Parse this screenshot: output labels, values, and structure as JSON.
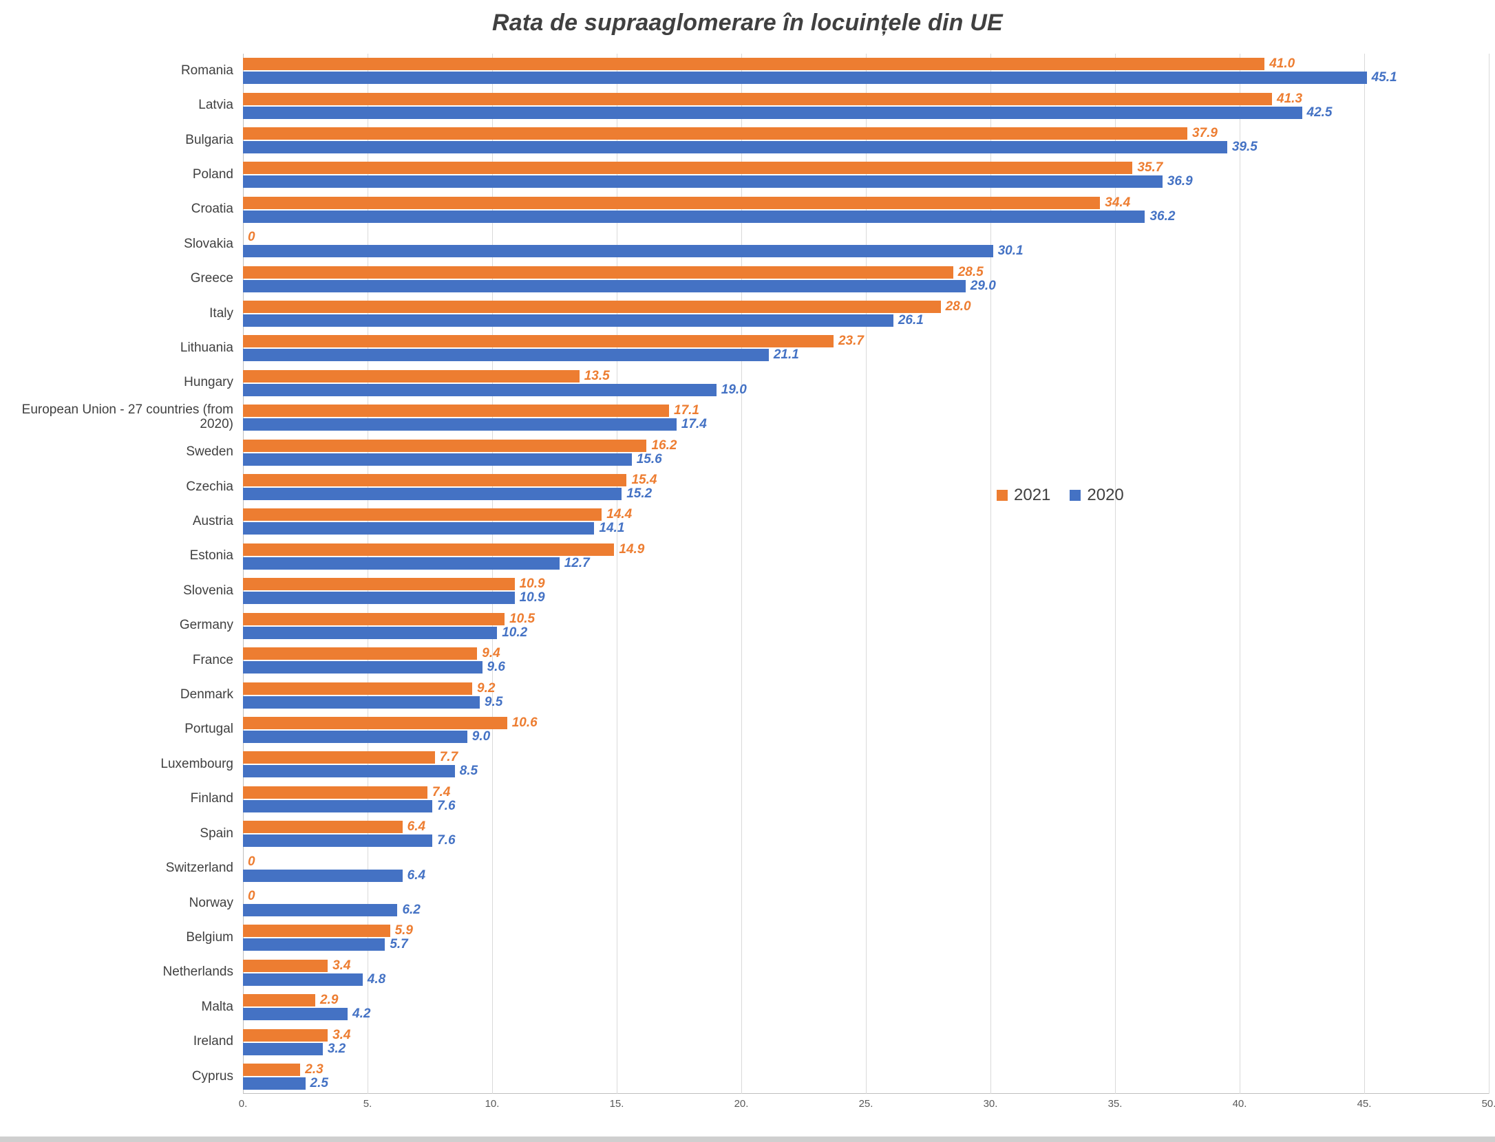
{
  "title": "Rata de supraaglomerare în locuințele din UE",
  "chart_data": {
    "type": "bar",
    "orientation": "horizontal",
    "title": "Rata de supraaglomerare în locuințele din UE",
    "categories": [
      "Romania",
      "Latvia",
      "Bulgaria",
      "Poland",
      "Croatia",
      "Slovakia",
      "Greece",
      "Italy",
      "Lithuania",
      "Hungary",
      "European Union - 27 countries (from 2020)",
      "Sweden",
      "Czechia",
      "Austria",
      "Estonia",
      "Slovenia",
      "Germany",
      "France",
      "Denmark",
      "Portugal",
      "Luxembourg",
      "Finland",
      "Spain",
      "Switzerland",
      "Norway",
      "Belgium",
      "Netherlands",
      "Malta",
      "Ireland",
      "Cyprus"
    ],
    "series": [
      {
        "name": "2021",
        "color": "#ED7D31",
        "values": [
          41.0,
          41.3,
          37.9,
          35.7,
          34.4,
          0,
          28.5,
          28.0,
          23.7,
          13.5,
          17.1,
          16.2,
          15.4,
          14.4,
          14.9,
          10.9,
          10.5,
          9.4,
          9.2,
          10.6,
          7.7,
          7.4,
          6.4,
          0,
          0,
          5.9,
          3.4,
          2.9,
          3.4,
          2.3
        ],
        "value_labels": [
          "41.0",
          "41.3",
          "37.9",
          "35.7",
          "34.4",
          "0",
          "28.5",
          "28.0",
          "23.7",
          "13.5",
          "17.1",
          "16.2",
          "15.4",
          "14.4",
          "14.9",
          "10.9",
          "10.5",
          "9.4",
          "9.2",
          "10.6",
          "7.7",
          "7.4",
          "6.4",
          "0",
          "0",
          "5.9",
          "3.4",
          "2.9",
          "3.4",
          "2.3"
        ]
      },
      {
        "name": "2020",
        "color": "#4472C4",
        "values": [
          45.1,
          42.5,
          39.5,
          36.9,
          36.2,
          30.1,
          29.0,
          26.1,
          21.1,
          19.0,
          17.4,
          15.6,
          15.2,
          14.1,
          12.7,
          10.9,
          10.2,
          9.6,
          9.5,
          9.0,
          8.5,
          7.6,
          7.6,
          6.4,
          6.2,
          5.7,
          4.8,
          4.2,
          3.2,
          2.5
        ],
        "value_labels": [
          "45.1",
          "42.5",
          "39.5",
          "36.9",
          "36.2",
          "30.1",
          "29.0",
          "26.1",
          "21.1",
          "19.0",
          "17.4",
          "15.6",
          "15.2",
          "14.1",
          "12.7",
          "10.9",
          "10.2",
          "9.6",
          "9.5",
          "9.0",
          "8.5",
          "7.6",
          "7.6",
          "6.4",
          "6.2",
          "5.7",
          "4.8",
          "4.2",
          "3.2",
          "2.5"
        ]
      }
    ],
    "xlim": [
      0,
      50
    ],
    "x_ticks": [
      "0.",
      "5.",
      "10.",
      "15.",
      "20.",
      "25.",
      "30.",
      "35.",
      "40.",
      "45.",
      "50."
    ],
    "grid": true,
    "legend_position": "center-right"
  }
}
